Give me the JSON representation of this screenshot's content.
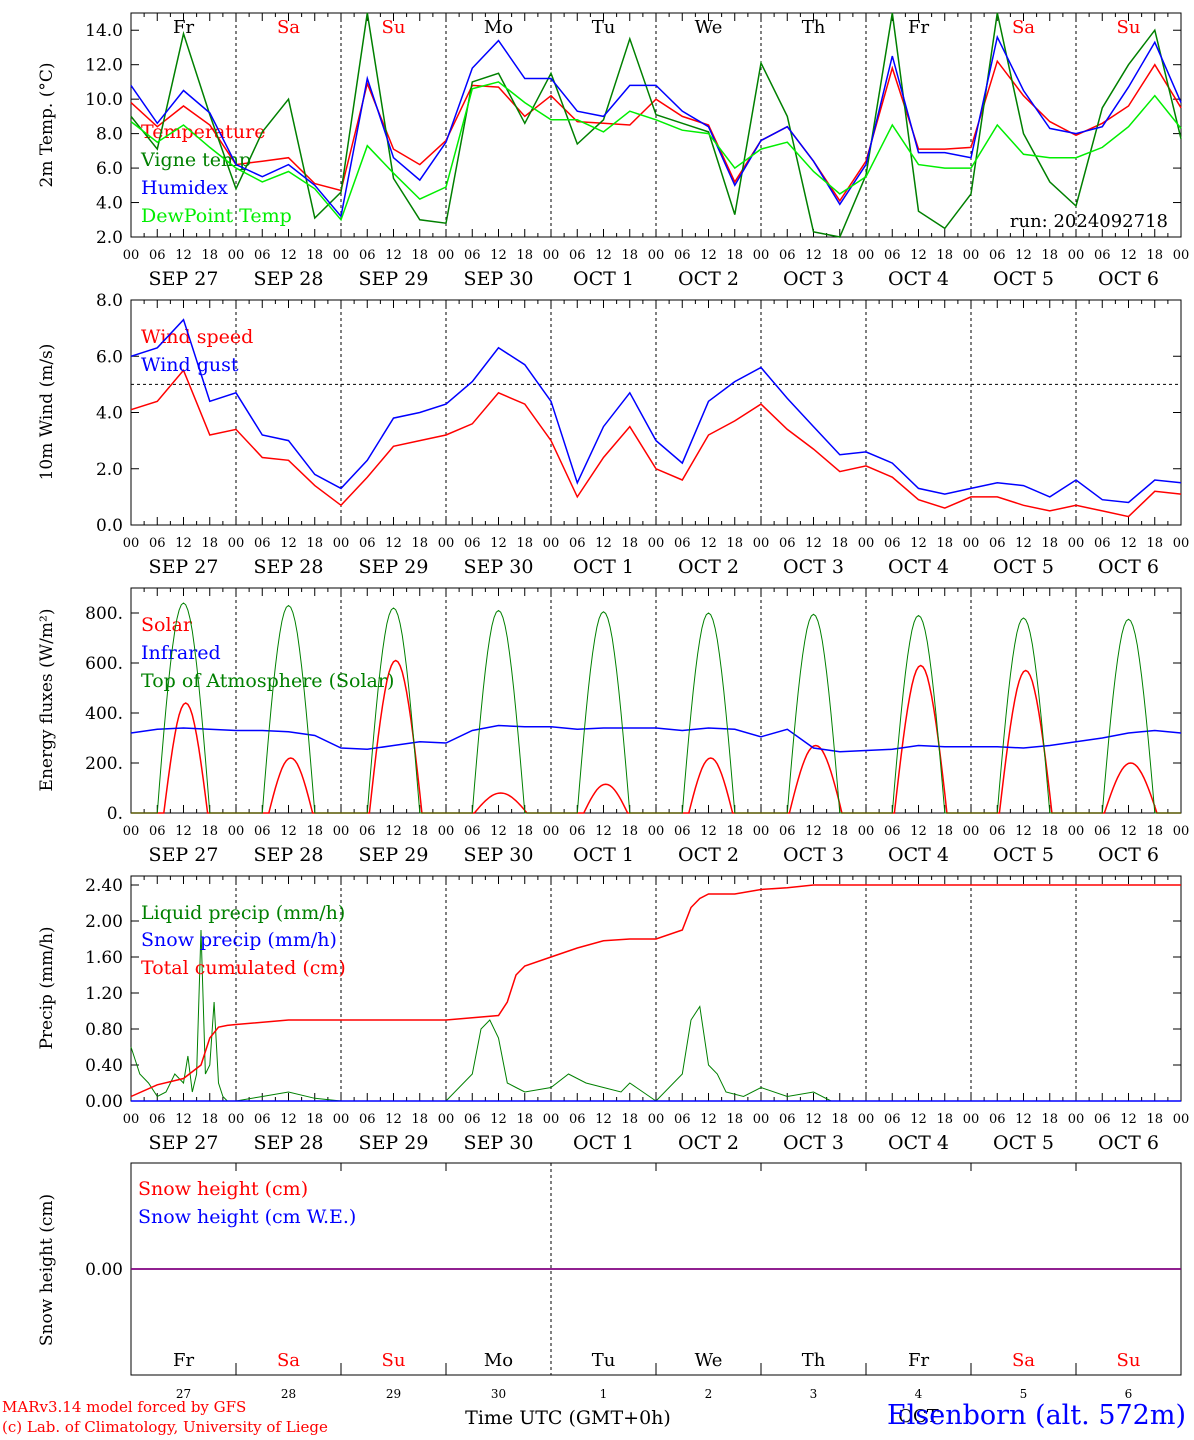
{
  "run_label": "run: 2024092718",
  "day_names": [
    "Fr",
    "Sa",
    "Su",
    "Mo",
    "Tu",
    "We",
    "Th",
    "Fr",
    "Sa",
    "Su"
  ],
  "weekend_flags": [
    false,
    true,
    true,
    false,
    false,
    false,
    false,
    false,
    true,
    true
  ],
  "date_labels": [
    "SEP 27",
    "SEP 28",
    "SEP 29",
    "SEP 30",
    "OCT  1",
    "OCT  2",
    "OCT  3",
    "OCT  4",
    "OCT  5",
    "OCT  6"
  ],
  "day_numbers": [
    "27",
    "28",
    "29",
    "30",
    "1",
    "2",
    "3",
    "4",
    "5",
    "6"
  ],
  "hour_ticks": [
    "00",
    "06",
    "12",
    "18"
  ],
  "final_hour_tick": "00",
  "month_label": "OCT",
  "xaxis_title": "Time UTC (GMT+0h)",
  "station": "Elsenborn (alt. 572m)",
  "credit_model": "MARv3.14 model forced by GFS",
  "credit_lab": "(c) Lab. of Climatology, University of Liege",
  "colors": {
    "red": "#ff0000",
    "green": "#008000",
    "blue": "#0000ff",
    "lightgreen": "#00ee00",
    "purple": "#800080",
    "axis": "#000000"
  },
  "chart_data": [
    {
      "type": "line",
      "ylabel": "2m Temp. (°C)",
      "ylim": [
        2,
        15
      ],
      "yticks": [
        2,
        4,
        6,
        8,
        10,
        12,
        14
      ],
      "ytick_labels": [
        "2.0",
        "4.0",
        "6.0",
        "8.0",
        "10.0",
        "12.0",
        "14.0"
      ],
      "x_unit": "hours since SEP 27 00 UTC",
      "series": [
        {
          "name": "Temperature",
          "color": "red",
          "x": [
            0,
            6,
            12,
            18,
            24,
            30,
            36,
            42,
            48,
            54,
            60,
            66,
            72,
            78,
            84,
            90,
            96,
            102,
            108,
            114,
            120,
            126,
            132,
            138,
            144,
            150,
            156,
            162,
            168,
            174,
            180,
            186,
            192,
            198,
            204,
            210,
            216,
            222,
            228,
            234,
            240
          ],
          "y": [
            9.8,
            8.4,
            9.6,
            8.5,
            6.2,
            6.4,
            6.6,
            5.1,
            4.7,
            10.9,
            7.1,
            6.2,
            7.6,
            10.8,
            10.7,
            9.0,
            10.2,
            8.7,
            8.6,
            8.5,
            10.0,
            9.0,
            8.5,
            5.2,
            7.6,
            8.4,
            6.4,
            4.1,
            6.4,
            11.8,
            7.1,
            7.1,
            7.2,
            12.2,
            10.2,
            8.7,
            7.9,
            8.6,
            9.6,
            12.0,
            9.5
          ]
        },
        {
          "name": "Vigne temp",
          "color": "green",
          "x": [
            0,
            6,
            12,
            18,
            24,
            30,
            36,
            42,
            48,
            54,
            60,
            66,
            72,
            78,
            84,
            90,
            96,
            102,
            108,
            114,
            120,
            126,
            132,
            138,
            144,
            150,
            156,
            162,
            168,
            174,
            180,
            186,
            192,
            198,
            204,
            210,
            216,
            222,
            228,
            234,
            240
          ],
          "y": [
            9.0,
            7.1,
            13.8,
            9.1,
            4.8,
            8.1,
            10.0,
            3.1,
            4.6,
            15.2,
            5.4,
            3.0,
            2.8,
            11.0,
            11.5,
            8.6,
            11.5,
            7.4,
            8.8,
            13.5,
            9.1,
            8.6,
            8.1,
            3.3,
            12.1,
            9.0,
            2.3,
            1.5,
            5.6,
            15.0,
            3.5,
            2.5,
            4.5,
            15.1,
            8.0,
            5.2,
            3.8,
            9.5,
            12.0,
            14.0,
            7.7
          ]
        },
        {
          "name": "Humidex",
          "color": "blue",
          "x": [
            0,
            6,
            12,
            18,
            24,
            30,
            36,
            42,
            48,
            54,
            60,
            66,
            72,
            78,
            84,
            90,
            96,
            102,
            108,
            114,
            120,
            126,
            132,
            138,
            144,
            150,
            156,
            162,
            168,
            174,
            180,
            186,
            192,
            198,
            204,
            210,
            216,
            222,
            228,
            234,
            240
          ],
          "y": [
            10.8,
            8.6,
            10.5,
            9.2,
            6.2,
            5.5,
            6.2,
            5.0,
            3.2,
            11.2,
            6.6,
            5.3,
            7.5,
            11.8,
            13.4,
            11.2,
            11.2,
            9.3,
            9.0,
            10.8,
            10.8,
            9.3,
            8.4,
            5.0,
            7.6,
            8.4,
            6.4,
            3.9,
            6.2,
            12.5,
            6.9,
            6.9,
            6.6,
            13.6,
            10.5,
            8.3,
            8.0,
            8.4,
            10.7,
            13.3,
            9.8
          ]
        },
        {
          "name": "DewPoint Temp",
          "color": "lightgreen",
          "x": [
            0,
            6,
            12,
            18,
            24,
            30,
            36,
            42,
            48,
            54,
            60,
            66,
            72,
            78,
            84,
            90,
            96,
            102,
            108,
            114,
            120,
            126,
            132,
            138,
            144,
            150,
            156,
            162,
            168,
            174,
            180,
            186,
            192,
            198,
            204,
            210,
            216,
            222,
            228,
            234,
            240
          ],
          "y": [
            8.7,
            7.5,
            8.5,
            7.2,
            6.0,
            5.2,
            5.8,
            4.8,
            3.0,
            7.3,
            5.7,
            4.2,
            4.9,
            10.6,
            11.0,
            9.8,
            8.8,
            8.8,
            8.1,
            9.3,
            8.8,
            8.2,
            8.0,
            6.0,
            7.1,
            7.5,
            5.8,
            4.5,
            5.5,
            8.5,
            6.2,
            6.0,
            6.0,
            8.5,
            6.8,
            6.6,
            6.6,
            7.2,
            8.4,
            10.2,
            8.3
          ]
        }
      ]
    },
    {
      "type": "line",
      "ylabel": "10m Wind (m/s)",
      "ylim": [
        0,
        8
      ],
      "yticks": [
        0,
        2,
        4,
        6,
        8
      ],
      "ytick_labels": [
        "0.0",
        "2.0",
        "4.0",
        "6.0",
        "8.0"
      ],
      "reference_line": 5,
      "x_unit": "hours since SEP 27 00 UTC",
      "series": [
        {
          "name": "Wind speed",
          "color": "red",
          "x": [
            0,
            6,
            12,
            18,
            24,
            30,
            36,
            42,
            48,
            54,
            60,
            66,
            72,
            78,
            84,
            90,
            96,
            102,
            108,
            114,
            120,
            126,
            132,
            138,
            144,
            150,
            156,
            162,
            168,
            174,
            180,
            186,
            192,
            198,
            204,
            210,
            216,
            222,
            228,
            234,
            240
          ],
          "y": [
            4.1,
            4.4,
            5.5,
            3.2,
            3.4,
            2.4,
            2.3,
            1.4,
            0.7,
            1.7,
            2.8,
            3.0,
            3.2,
            3.6,
            4.7,
            4.3,
            3.0,
            1.0,
            2.4,
            3.5,
            2.0,
            1.6,
            3.2,
            3.7,
            4.3,
            3.4,
            2.7,
            1.9,
            2.1,
            1.7,
            0.9,
            0.6,
            1.0,
            1.0,
            0.7,
            0.5,
            0.7,
            0.5,
            0.3,
            1.2,
            1.1
          ]
        },
        {
          "name": "Wind gust",
          "color": "blue",
          "x": [
            0,
            6,
            12,
            18,
            24,
            30,
            36,
            42,
            48,
            54,
            60,
            66,
            72,
            78,
            84,
            90,
            96,
            102,
            108,
            114,
            120,
            126,
            132,
            138,
            144,
            150,
            156,
            162,
            168,
            174,
            180,
            186,
            192,
            198,
            204,
            210,
            216,
            222,
            228,
            234,
            240
          ],
          "y": [
            6.0,
            6.3,
            7.3,
            4.4,
            4.7,
            3.2,
            3.0,
            1.8,
            1.3,
            2.3,
            3.8,
            4.0,
            4.3,
            5.1,
            6.3,
            5.7,
            4.4,
            1.5,
            3.5,
            4.7,
            3.0,
            2.2,
            4.4,
            5.1,
            5.6,
            4.5,
            3.5,
            2.5,
            2.6,
            2.2,
            1.3,
            1.1,
            1.3,
            1.5,
            1.4,
            1.0,
            1.6,
            0.9,
            0.8,
            1.6,
            1.5
          ]
        }
      ]
    },
    {
      "type": "line",
      "ylabel": "Energy fluxes (W/m²)",
      "ylim": [
        0,
        900
      ],
      "yticks": [
        0,
        200,
        400,
        600,
        800
      ],
      "ytick_labels": [
        "0.",
        "200.",
        "400.",
        "600.",
        "800."
      ],
      "x_unit": "hours since SEP 27 00 UTC",
      "series": [
        {
          "name": "Solar",
          "color": "red",
          "peaks": [
            {
              "center": 12.5,
              "peak": 440,
              "halfwidth": 5
            },
            {
              "center": 36.5,
              "peak": 220,
              "halfwidth": 5
            },
            {
              "center": 60.5,
              "peak": 610,
              "halfwidth": 6
            },
            {
              "center": 84.5,
              "peak": 80,
              "halfwidth": 6
            },
            {
              "center": 108.5,
              "peak": 115,
              "halfwidth": 5
            },
            {
              "center": 132.5,
              "peak": 220,
              "halfwidth": 5
            },
            {
              "center": 156.5,
              "peak": 270,
              "halfwidth": 6
            },
            {
              "center": 180.5,
              "peak": 590,
              "halfwidth": 6
            },
            {
              "center": 204.5,
              "peak": 570,
              "halfwidth": 6
            },
            {
              "center": 228.5,
              "peak": 200,
              "halfwidth": 6
            }
          ]
        },
        {
          "name": "Infrared",
          "color": "blue",
          "x": [
            0,
            6,
            12,
            18,
            24,
            30,
            36,
            42,
            48,
            54,
            60,
            66,
            72,
            78,
            84,
            90,
            96,
            102,
            108,
            114,
            120,
            126,
            132,
            138,
            144,
            150,
            156,
            162,
            168,
            174,
            180,
            186,
            192,
            198,
            204,
            210,
            216,
            222,
            228,
            234,
            240
          ],
          "y": [
            320,
            335,
            340,
            335,
            330,
            330,
            325,
            310,
            260,
            255,
            270,
            285,
            280,
            330,
            350,
            345,
            345,
            335,
            340,
            340,
            340,
            330,
            340,
            335,
            305,
            335,
            260,
            245,
            250,
            255,
            270,
            265,
            265,
            265,
            260,
            270,
            285,
            300,
            320,
            330,
            320
          ]
        },
        {
          "name": "Top of Atmosphere (Solar)",
          "color": "green",
          "peaks": [
            {
              "center": 12,
              "peak": 840,
              "halfwidth": 6
            },
            {
              "center": 36,
              "peak": 830,
              "halfwidth": 6
            },
            {
              "center": 60,
              "peak": 820,
              "halfwidth": 6
            },
            {
              "center": 84,
              "peak": 810,
              "halfwidth": 6
            },
            {
              "center": 108,
              "peak": 805,
              "halfwidth": 6
            },
            {
              "center": 132,
              "peak": 800,
              "halfwidth": 6
            },
            {
              "center": 156,
              "peak": 795,
              "halfwidth": 6
            },
            {
              "center": 180,
              "peak": 790,
              "halfwidth": 6
            },
            {
              "center": 204,
              "peak": 780,
              "halfwidth": 6
            },
            {
              "center": 228,
              "peak": 775,
              "halfwidth": 6
            }
          ]
        }
      ]
    },
    {
      "type": "line",
      "ylabel": "Precip (mm/h)",
      "ylim": [
        0,
        2.5
      ],
      "yticks": [
        0,
        0.4,
        0.8,
        1.2,
        1.6,
        2.0,
        2.4
      ],
      "ytick_labels": [
        "0.00",
        "0.40",
        "0.80",
        "1.20",
        "1.60",
        "2.00",
        "2.40"
      ],
      "x_unit": "hours since SEP 27 00 UTC",
      "series": [
        {
          "name": "Liquid precip (mm/h)",
          "color": "green",
          "x": [
            0,
            2,
            4,
            6,
            8,
            10,
            12,
            13,
            14,
            15,
            16,
            17,
            18,
            19,
            20,
            21,
            22,
            24,
            30,
            36,
            42,
            48,
            60,
            72,
            78,
            80,
            82,
            84,
            86,
            88,
            90,
            96,
            100,
            104,
            108,
            112,
            114,
            117,
            120,
            126,
            128,
            130,
            132,
            134,
            136,
            140,
            144,
            150,
            156,
            160,
            168,
            240
          ],
          "y": [
            0.6,
            0.3,
            0.2,
            0.05,
            0.1,
            0.3,
            0.2,
            0.5,
            0.1,
            0.3,
            1.9,
            0.3,
            0.4,
            1.1,
            0.2,
            0.05,
            0.0,
            0.0,
            0.05,
            0.1,
            0.03,
            0.0,
            0.0,
            0.0,
            0.3,
            0.8,
            0.9,
            0.7,
            0.2,
            0.15,
            0.1,
            0.15,
            0.3,
            0.2,
            0.15,
            0.1,
            0.2,
            0.1,
            0.0,
            0.3,
            0.9,
            1.05,
            0.4,
            0.3,
            0.1,
            0.05,
            0.15,
            0.05,
            0.1,
            0.0,
            0.0,
            0.0
          ]
        },
        {
          "name": "Snow precip (mm/h)",
          "color": "blue",
          "x": [
            0,
            240
          ],
          "y": [
            0,
            0
          ]
        },
        {
          "name": "Total cumulated (cm)",
          "color": "red",
          "x": [
            0,
            6,
            12,
            16,
            18,
            20,
            22,
            24,
            36,
            48,
            72,
            84,
            86,
            88,
            90,
            96,
            102,
            108,
            114,
            120,
            126,
            128,
            130,
            132,
            138,
            144,
            150,
            156,
            168,
            240
          ],
          "y": [
            0.05,
            0.18,
            0.25,
            0.4,
            0.7,
            0.82,
            0.84,
            0.85,
            0.9,
            0.9,
            0.9,
            0.95,
            1.1,
            1.4,
            1.5,
            1.6,
            1.7,
            1.78,
            1.8,
            1.8,
            1.9,
            2.15,
            2.25,
            2.3,
            2.3,
            2.35,
            2.37,
            2.4,
            2.4,
            2.4
          ]
        }
      ]
    },
    {
      "type": "line",
      "ylabel": "Snow height (cm)",
      "ylim": [
        -1,
        1
      ],
      "yticks": [
        0
      ],
      "ytick_labels": [
        "0.00"
      ],
      "x_unit": "hours since SEP 27 00 UTC",
      "series": [
        {
          "name": "Snow height (cm)",
          "color": "red",
          "x": [
            0,
            240
          ],
          "y": [
            0,
            0
          ]
        },
        {
          "name": "Snow height (cm W.E.)",
          "color": "blue",
          "x": [
            0,
            240
          ],
          "y": [
            0,
            0
          ]
        }
      ]
    }
  ]
}
